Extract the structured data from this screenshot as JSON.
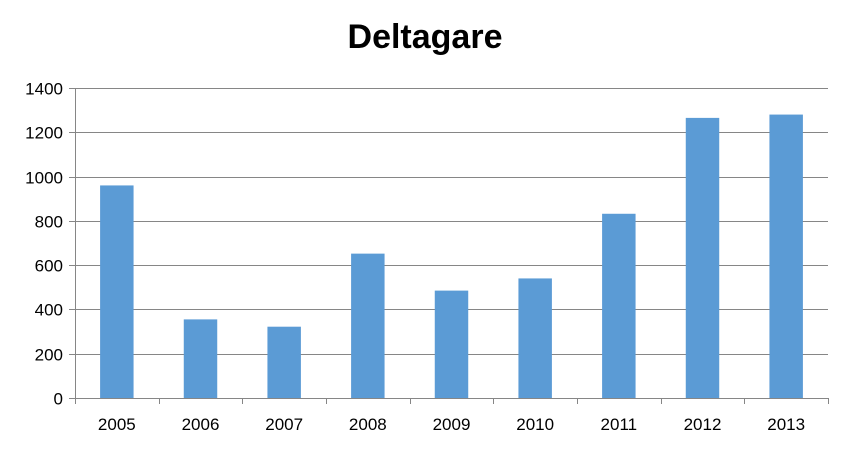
{
  "chart_data": {
    "type": "bar",
    "title": "Deltagare",
    "xlabel": "",
    "ylabel": "",
    "categories": [
      "2005",
      "2006",
      "2007",
      "2008",
      "2009",
      "2010",
      "2011",
      "2012",
      "2013"
    ],
    "series": [
      {
        "values": [
          960,
          355,
          322,
          652,
          485,
          540,
          832,
          1265,
          1280
        ]
      }
    ],
    "ylim": [
      0,
      1400
    ],
    "yticks": [
      0,
      200,
      400,
      600,
      800,
      1000,
      1200,
      1400
    ],
    "grid": true,
    "legend": "none",
    "colors": {
      "bar": "#5B9BD5",
      "grid": "#868686",
      "axis": "#868686"
    }
  }
}
